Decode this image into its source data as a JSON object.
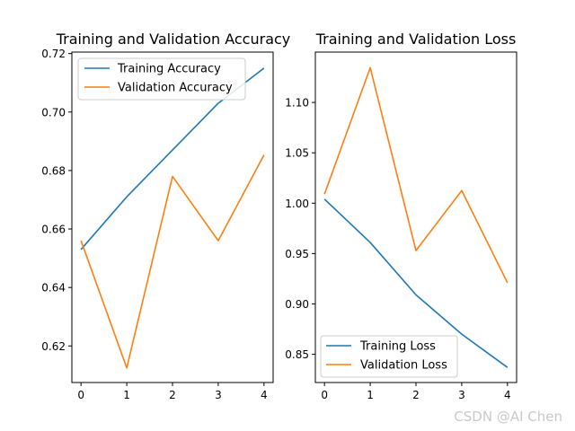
{
  "chart_data": [
    {
      "type": "line",
      "title": "Training and Validation Accuracy",
      "xlabel": "",
      "ylabel": "",
      "x": [
        0,
        1,
        2,
        3,
        4
      ],
      "xlim": [
        -0.2,
        4.2
      ],
      "ylim": [
        0.6075,
        0.7205
      ],
      "xticks": [
        0,
        1,
        2,
        3,
        4
      ],
      "yticks": [
        0.62,
        0.64,
        0.66,
        0.68,
        0.7,
        0.72
      ],
      "ytick_labels": [
        "0.62",
        "0.64",
        "0.66",
        "0.68",
        "0.70",
        "0.72"
      ],
      "legend_position": "upper-left",
      "grid": false,
      "series": [
        {
          "name": "Training Accuracy",
          "color": "#1f77b4",
          "values": [
            0.653,
            0.671,
            0.687,
            0.703,
            0.715
          ]
        },
        {
          "name": "Validation Accuracy",
          "color": "#ff7f0e",
          "values": [
            0.656,
            0.6125,
            0.678,
            0.656,
            0.6853
          ]
        }
      ]
    },
    {
      "type": "line",
      "title": "Training and Validation Loss",
      "xlabel": "",
      "ylabel": "",
      "x": [
        0,
        1,
        2,
        3,
        4
      ],
      "xlim": [
        -0.2,
        4.2
      ],
      "ylim": [
        0.822,
        1.15
      ],
      "xticks": [
        0,
        1,
        2,
        3,
        4
      ],
      "yticks": [
        0.85,
        0.9,
        0.95,
        1.0,
        1.05,
        1.1
      ],
      "ytick_labels": [
        "0.85",
        "0.90",
        "0.95",
        "1.00",
        "1.05",
        "1.10"
      ],
      "legend_position": "lower-left",
      "grid": false,
      "series": [
        {
          "name": "Training Loss",
          "color": "#1f77b4",
          "values": [
            1.004,
            0.961,
            0.909,
            0.87,
            0.837
          ]
        },
        {
          "name": "Validation Loss",
          "color": "#ff7f0e",
          "values": [
            1.009,
            1.1345,
            0.953,
            1.0125,
            0.921
          ]
        }
      ]
    }
  ],
  "watermark": "CSDN @AI Chen"
}
